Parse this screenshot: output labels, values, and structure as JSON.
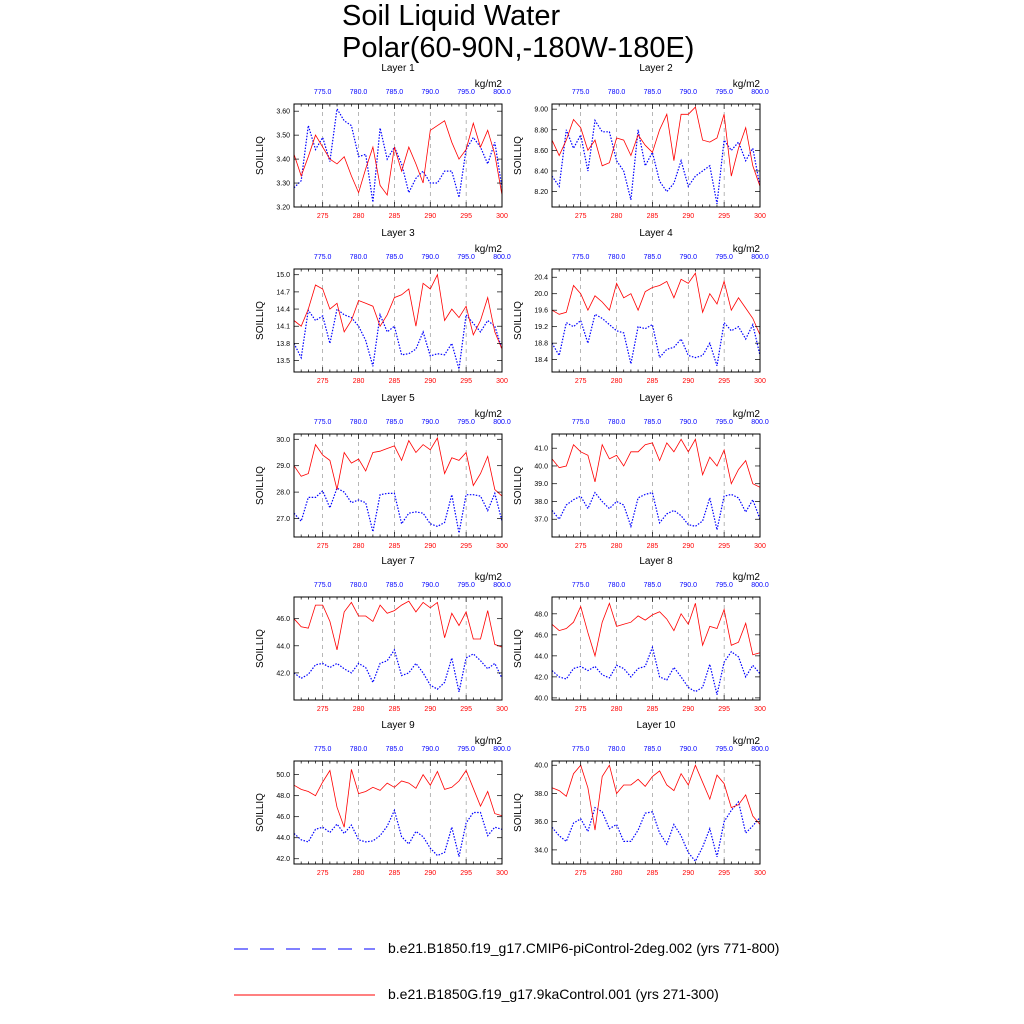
{
  "title": {
    "line1": "Soil Liquid Water",
    "line2": "Polar(60-90N,-180W-180E)"
  },
  "units": "kg/m2",
  "colors": {
    "series_a": "#0000ff",
    "series_b": "#ff0000",
    "axis": "#000000",
    "grid": "#888888"
  },
  "legend": {
    "series_a": "b.e21.B1850.f19_g17.CMIP6-piControl-2deg.002 (yrs 771-800)",
    "series_b": "b.e21.B1850G.f19_g17.9kaControl.001 (yrs 271-300)"
  },
  "chart_data": [
    {
      "type": "line",
      "title": "Layer 1",
      "ylabel": "SOILLIQ",
      "units": "kg/m2",
      "ylim": [
        3.2,
        3.63
      ],
      "yticks": [
        "3.20",
        "3.30",
        "3.40",
        "3.50",
        "3.60"
      ],
      "x_bottom": {
        "range": [
          271,
          300
        ],
        "ticks": [
          "275",
          "280",
          "285",
          "290",
          "295",
          "300"
        ]
      },
      "x_top": {
        "range": [
          771,
          800
        ],
        "ticks": [
          "775.0",
          "780.0",
          "785.0",
          "790.0",
          "795.0",
          "800.0"
        ]
      },
      "series": [
        {
          "values": [
            3.28,
            3.31,
            3.54,
            3.44,
            3.49,
            3.39,
            3.61,
            3.56,
            3.54,
            3.41,
            3.42,
            3.22,
            3.53,
            3.4,
            3.45,
            3.38,
            3.26,
            3.32,
            3.35,
            3.3,
            3.3,
            3.35,
            3.35,
            3.24,
            3.44,
            3.49,
            3.45,
            3.38,
            3.47,
            3.28
          ]
        },
        {
          "values": [
            3.42,
            3.33,
            3.41,
            3.5,
            3.45,
            3.4,
            3.38,
            3.41,
            3.33,
            3.26,
            3.36,
            3.45,
            3.29,
            3.25,
            3.45,
            3.35,
            3.45,
            3.38,
            3.3,
            3.52,
            3.54,
            3.56,
            3.47,
            3.4,
            3.44,
            3.55,
            3.45,
            3.52,
            3.42,
            3.25
          ]
        }
      ]
    },
    {
      "type": "line",
      "title": "Layer 2",
      "ylabel": "SOILLIQ",
      "units": "kg/m2",
      "ylim": [
        8.05,
        9.05
      ],
      "yticks": [
        "8.20",
        "8.40",
        "8.60",
        "8.80",
        "9.00"
      ],
      "x_bottom": {
        "range": [
          271,
          300
        ],
        "ticks": [
          "275",
          "280",
          "285",
          "290",
          "295",
          "300"
        ]
      },
      "x_top": {
        "range": [
          771,
          800
        ],
        "ticks": [
          "775.0",
          "780.0",
          "785.0",
          "790.0",
          "795.0",
          "800.0"
        ]
      },
      "series": [
        {
          "values": [
            8.35,
            8.25,
            8.8,
            8.62,
            8.75,
            8.4,
            8.89,
            8.78,
            8.78,
            8.5,
            8.4,
            8.12,
            8.8,
            8.45,
            8.58,
            8.3,
            8.2,
            8.28,
            8.5,
            8.25,
            8.35,
            8.4,
            8.45,
            8.08,
            8.7,
            8.6,
            8.68,
            8.5,
            8.62,
            8.25
          ]
        },
        {
          "values": [
            8.7,
            8.55,
            8.7,
            8.9,
            8.82,
            8.6,
            8.7,
            8.45,
            8.48,
            8.72,
            8.7,
            8.55,
            8.75,
            8.65,
            8.58,
            8.8,
            8.95,
            8.5,
            8.95,
            8.95,
            9.02,
            8.7,
            8.68,
            8.72,
            8.95,
            8.35,
            8.62,
            8.82,
            8.45,
            8.25
          ]
        }
      ]
    },
    {
      "type": "line",
      "title": "Layer 3",
      "ylabel": "SOILLIQ",
      "units": "kg/m2",
      "ylim": [
        13.3,
        15.1
      ],
      "yticks": [
        "13.5",
        "13.8",
        "14.1",
        "14.4",
        "14.7",
        "15.0"
      ],
      "x_bottom": {
        "range": [
          271,
          300
        ],
        "ticks": [
          "275",
          "280",
          "285",
          "290",
          "295",
          "300"
        ]
      },
      "x_top": {
        "range": [
          771,
          800
        ],
        "ticks": [
          "775.0",
          "780.0",
          "785.0",
          "790.0",
          "795.0",
          "800.0"
        ]
      },
      "series": [
        {
          "values": [
            13.8,
            13.55,
            14.38,
            14.2,
            14.28,
            13.8,
            14.4,
            14.3,
            14.25,
            14.1,
            13.85,
            13.4,
            14.3,
            14.0,
            14.1,
            13.6,
            13.62,
            13.7,
            14.0,
            13.58,
            13.62,
            13.6,
            13.8,
            13.35,
            14.3,
            14.15,
            14.0,
            14.2,
            14.1,
            13.7
          ]
        },
        {
          "values": [
            14.2,
            14.1,
            14.4,
            14.82,
            14.75,
            14.4,
            14.5,
            14.0,
            14.2,
            14.55,
            14.5,
            14.45,
            14.1,
            14.3,
            14.6,
            14.65,
            14.75,
            14.1,
            14.85,
            14.75,
            15.0,
            14.2,
            14.4,
            14.25,
            14.45,
            13.95,
            14.2,
            14.6,
            14.0,
            13.7
          ]
        }
      ]
    },
    {
      "type": "line",
      "title": "Layer 4",
      "ylabel": "SOILLIQ",
      "units": "kg/m2",
      "ylim": [
        18.1,
        20.6
      ],
      "yticks": [
        "18.4",
        "18.8",
        "19.2",
        "19.6",
        "20.0",
        "20.4"
      ],
      "x_bottom": {
        "range": [
          271,
          300
        ],
        "ticks": [
          "275",
          "280",
          "285",
          "290",
          "295",
          "300"
        ]
      },
      "x_top": {
        "range": [
          771,
          800
        ],
        "ticks": [
          "775.0",
          "780.0",
          "785.0",
          "790.0",
          "795.0",
          "800.0"
        ]
      },
      "series": [
        {
          "values": [
            18.8,
            18.5,
            19.3,
            19.2,
            19.35,
            18.8,
            19.5,
            19.4,
            19.25,
            19.1,
            19.05,
            18.3,
            19.2,
            19.15,
            19.25,
            18.45,
            18.65,
            18.7,
            18.9,
            18.5,
            18.45,
            18.5,
            18.8,
            18.25,
            19.3,
            19.1,
            19.2,
            18.9,
            19.25,
            18.5
          ]
        },
        {
          "values": [
            19.6,
            19.5,
            19.55,
            20.2,
            20.0,
            19.6,
            19.95,
            19.8,
            19.6,
            20.25,
            19.9,
            20.0,
            19.6,
            20.05,
            20.15,
            20.2,
            20.3,
            19.9,
            20.35,
            20.25,
            20.5,
            19.55,
            20.0,
            19.75,
            20.3,
            19.6,
            19.9,
            19.65,
            19.4,
            19.0
          ]
        }
      ]
    },
    {
      "type": "line",
      "title": "Layer 5",
      "ylabel": "SOILLIQ",
      "units": "kg/m2",
      "ylim": [
        26.3,
        30.2
      ],
      "yticks": [
        "27.0",
        "28.0",
        "29.0",
        "30.0"
      ],
      "x_bottom": {
        "range": [
          271,
          300
        ],
        "ticks": [
          "275",
          "280",
          "285",
          "290",
          "295",
          "300"
        ]
      },
      "x_top": {
        "range": [
          771,
          800
        ],
        "ticks": [
          "775.0",
          "780.0",
          "785.0",
          "790.0",
          "795.0",
          "800.0"
        ]
      },
      "series": [
        {
          "values": [
            27.2,
            26.9,
            27.8,
            27.8,
            28.05,
            27.4,
            28.15,
            28.0,
            27.6,
            27.7,
            27.6,
            26.5,
            27.9,
            27.95,
            27.95,
            26.8,
            27.2,
            27.25,
            27.2,
            26.8,
            26.7,
            26.85,
            27.9,
            26.45,
            27.9,
            27.9,
            27.85,
            27.3,
            27.95,
            26.9
          ]
        },
        {
          "values": [
            29.0,
            28.6,
            28.7,
            29.8,
            29.4,
            29.2,
            28.1,
            29.5,
            29.1,
            29.25,
            28.8,
            29.5,
            29.55,
            29.65,
            29.75,
            29.2,
            29.95,
            29.5,
            29.8,
            29.6,
            30.05,
            28.7,
            29.3,
            29.2,
            29.5,
            28.25,
            28.7,
            29.35,
            28.1,
            27.85
          ]
        }
      ]
    },
    {
      "type": "line",
      "title": "Layer 6",
      "ylabel": "SOILLIQ",
      "units": "kg/m2",
      "ylim": [
        36.0,
        41.8
      ],
      "yticks": [
        "37.0",
        "38.0",
        "39.0",
        "40.0",
        "41.0"
      ],
      "x_bottom": {
        "range": [
          271,
          300
        ],
        "ticks": [
          "275",
          "280",
          "285",
          "290",
          "295",
          "300"
        ]
      },
      "x_top": {
        "range": [
          771,
          800
        ],
        "ticks": [
          "775.0",
          "780.0",
          "785.0",
          "790.0",
          "795.0",
          "800.0"
        ]
      },
      "series": [
        {
          "values": [
            37.5,
            37.0,
            37.8,
            38.1,
            38.3,
            37.6,
            38.5,
            38.0,
            37.6,
            38.0,
            37.8,
            36.6,
            38.2,
            38.4,
            38.5,
            36.8,
            37.3,
            37.5,
            37.2,
            36.7,
            36.6,
            36.9,
            38.2,
            36.4,
            38.3,
            38.4,
            38.2,
            37.4,
            38.1,
            37.0
          ]
        },
        {
          "values": [
            40.4,
            39.9,
            40.0,
            41.2,
            40.8,
            40.6,
            39.1,
            41.2,
            40.4,
            40.6,
            40.0,
            40.8,
            40.8,
            41.2,
            41.3,
            40.3,
            41.3,
            40.8,
            41.5,
            40.8,
            41.5,
            39.5,
            40.5,
            40.0,
            40.9,
            39.0,
            39.8,
            40.3,
            39.0,
            38.8
          ]
        }
      ]
    },
    {
      "type": "line",
      "title": "Layer 7",
      "ylabel": "SOILLIQ",
      "units": "kg/m2",
      "ylim": [
        40.0,
        47.6
      ],
      "yticks": [
        "42.0",
        "44.0",
        "46.0"
      ],
      "x_bottom": {
        "range": [
          271,
          300
        ],
        "ticks": [
          "275",
          "280",
          "285",
          "290",
          "295",
          "300"
        ]
      },
      "x_top": {
        "range": [
          771,
          800
        ],
        "ticks": [
          "775.0",
          "780.0",
          "785.0",
          "790.0",
          "795.0",
          "800.0"
        ]
      },
      "series": [
        {
          "values": [
            42.0,
            41.6,
            41.9,
            42.6,
            42.7,
            42.4,
            42.7,
            42.3,
            42.0,
            42.7,
            42.4,
            41.3,
            42.7,
            42.9,
            43.7,
            41.8,
            42.0,
            42.7,
            42.0,
            41.1,
            40.8,
            41.3,
            43.1,
            40.6,
            43.1,
            43.4,
            42.9,
            42.3,
            42.7,
            41.6
          ]
        },
        {
          "values": [
            46.0,
            45.4,
            45.3,
            47.0,
            47.0,
            45.8,
            43.7,
            46.5,
            47.2,
            46.2,
            46.2,
            45.8,
            47.0,
            46.4,
            46.6,
            47.0,
            47.3,
            46.5,
            47.2,
            46.8,
            47.2,
            44.6,
            46.4,
            45.5,
            46.5,
            44.5,
            44.5,
            46.6,
            44.1,
            43.9
          ]
        }
      ]
    },
    {
      "type": "line",
      "title": "Layer 8",
      "ylabel": "SOILLIQ",
      "units": "kg/m2",
      "ylim": [
        39.8,
        49.6
      ],
      "yticks": [
        "40.0",
        "42.0",
        "44.0",
        "46.0",
        "48.0"
      ],
      "x_bottom": {
        "range": [
          271,
          300
        ],
        "ticks": [
          "275",
          "280",
          "285",
          "290",
          "295",
          "300"
        ]
      },
      "x_top": {
        "range": [
          771,
          800
        ],
        "ticks": [
          "775.0",
          "780.0",
          "785.0",
          "790.0",
          "795.0",
          "800.0"
        ]
      },
      "series": [
        {
          "values": [
            42.6,
            42.0,
            41.8,
            42.8,
            43.0,
            42.6,
            43.0,
            42.2,
            41.9,
            43.1,
            42.8,
            42.0,
            42.8,
            43.0,
            44.8,
            42.0,
            41.7,
            42.9,
            42.0,
            41.0,
            40.6,
            41.0,
            43.2,
            40.3,
            43.4,
            44.4,
            43.9,
            42.0,
            43.1,
            42.3
          ]
        },
        {
          "values": [
            47.0,
            46.4,
            46.6,
            47.2,
            48.7,
            46.2,
            44.0,
            47.2,
            49.0,
            46.8,
            47.0,
            47.2,
            47.8,
            47.4,
            47.9,
            48.2,
            47.5,
            46.4,
            48.0,
            47.0,
            49.0,
            45.0,
            46.8,
            46.6,
            48.4,
            45.0,
            45.3,
            47.1,
            44.1,
            44.3
          ]
        }
      ]
    },
    {
      "type": "line",
      "title": "Layer 9",
      "ylabel": "SOILLIQ",
      "units": "kg/m2",
      "ylim": [
        41.5,
        51.3
      ],
      "yticks": [
        "42.0",
        "44.0",
        "46.0",
        "48.0",
        "50.0"
      ],
      "x_bottom": {
        "range": [
          271,
          300
        ],
        "ticks": [
          "275",
          "280",
          "285",
          "290",
          "295",
          "300"
        ]
      },
      "x_top": {
        "range": [
          771,
          800
        ],
        "ticks": [
          "775.0",
          "780.0",
          "785.0",
          "790.0",
          "795.0",
          "800.0"
        ]
      },
      "series": [
        {
          "values": [
            44.4,
            43.8,
            43.6,
            44.8,
            45.0,
            44.5,
            45.3,
            44.4,
            45.2,
            43.8,
            43.6,
            43.7,
            44.2,
            45.1,
            46.6,
            44.1,
            43.4,
            44.6,
            44.1,
            43.0,
            42.3,
            42.6,
            45.0,
            42.2,
            45.4,
            46.4,
            46.4,
            44.2,
            45.0,
            44.8
          ]
        },
        {
          "values": [
            49.0,
            48.6,
            48.4,
            48.0,
            49.3,
            50.4,
            46.9,
            45.0,
            50.5,
            48.2,
            48.4,
            48.8,
            48.5,
            49.2,
            48.8,
            49.4,
            49.2,
            48.7,
            50.0,
            49.0,
            50.3,
            48.6,
            48.8,
            49.4,
            50.4,
            48.7,
            47.0,
            48.4,
            46.3,
            46.1
          ]
        }
      ]
    },
    {
      "type": "line",
      "title": "Layer 10",
      "ylabel": "SOILLIQ",
      "units": "kg/m2",
      "ylim": [
        33.0,
        40.3
      ],
      "yticks": [
        "34.0",
        "36.0",
        "38.0",
        "40.0"
      ],
      "x_bottom": {
        "range": [
          271,
          300
        ],
        "ticks": [
          "275",
          "280",
          "285",
          "290",
          "295",
          "300"
        ]
      },
      "x_top": {
        "range": [
          771,
          800
        ],
        "ticks": [
          "775.0",
          "780.0",
          "785.0",
          "790.0",
          "795.0",
          "800.0"
        ]
      },
      "series": [
        {
          "values": [
            35.6,
            35.0,
            34.6,
            35.9,
            36.2,
            35.3,
            37.0,
            36.7,
            35.5,
            35.8,
            34.6,
            34.6,
            35.4,
            36.6,
            36.7,
            35.2,
            34.4,
            35.8,
            35.0,
            33.8,
            33.2,
            34.2,
            35.5,
            33.5,
            36.0,
            36.8,
            37.4,
            35.2,
            35.7,
            36.3
          ]
        },
        {
          "values": [
            38.4,
            38.2,
            37.8,
            39.4,
            40.0,
            38.4,
            35.4,
            39.2,
            40.0,
            38.0,
            38.6,
            38.6,
            39.0,
            38.5,
            39.2,
            39.6,
            38.6,
            38.2,
            39.4,
            38.6,
            40.0,
            38.8,
            37.6,
            39.3,
            38.7,
            37.0,
            37.2,
            37.9,
            36.4,
            35.8
          ]
        }
      ]
    }
  ]
}
